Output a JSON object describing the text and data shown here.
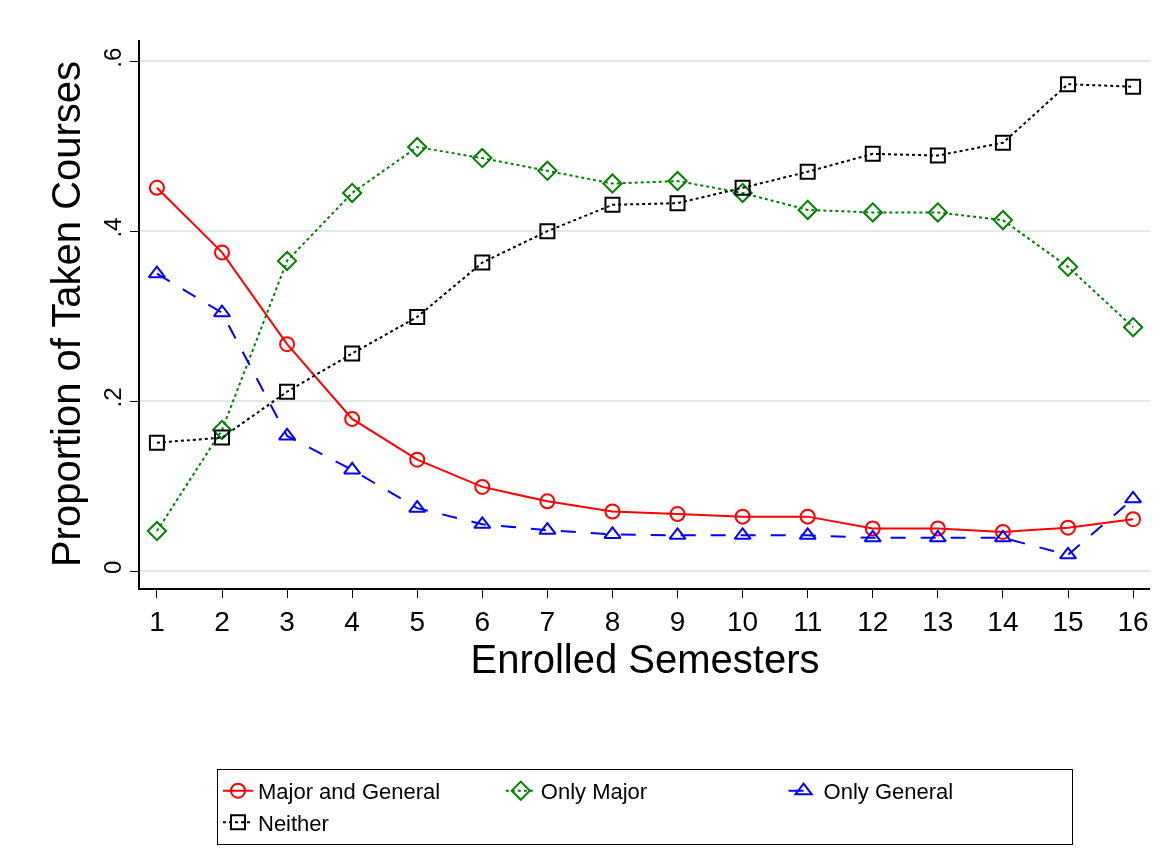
{
  "chart_data": {
    "type": "line",
    "xlabel": "Enrolled Semesters",
    "ylabel": "Proportion of Taken Courses",
    "x": [
      1,
      2,
      3,
      4,
      5,
      6,
      7,
      8,
      9,
      10,
      11,
      12,
      13,
      14,
      15,
      16
    ],
    "xlim": [
      0.74,
      16.26
    ],
    "xticks": [
      1,
      2,
      3,
      4,
      5,
      6,
      7,
      8,
      9,
      10,
      11,
      12,
      13,
      14,
      15,
      16
    ],
    "ylim": [
      -0.02,
      0.625
    ],
    "yticks": [
      {
        "value": 0,
        "label": "0"
      },
      {
        "value": 0.2,
        "label": ".2"
      },
      {
        "value": 0.4,
        "label": ".4"
      },
      {
        "value": 0.6,
        "label": ".6"
      }
    ],
    "grid": "y",
    "legend": "bottom",
    "series": [
      {
        "name": "Major and General",
        "color": "#ff0000",
        "marker": "circle",
        "line_style": "solid",
        "values": [
          0.451,
          0.375,
          0.267,
          0.179,
          0.131,
          0.099,
          0.082,
          0.07,
          0.067,
          0.064,
          0.064,
          0.05,
          0.05,
          0.046,
          0.051,
          0.061
        ]
      },
      {
        "name": "Only Major",
        "color": "#008000",
        "marker": "diamond",
        "line_style": "dotted",
        "values": [
          0.047,
          0.166,
          0.365,
          0.445,
          0.499,
          0.486,
          0.471,
          0.456,
          0.459,
          0.445,
          0.425,
          0.422,
          0.422,
          0.413,
          0.358,
          0.287
        ]
      },
      {
        "name": "Only General",
        "color": "#0000ff",
        "marker": "triangle",
        "line_style": "dashed",
        "values": [
          0.35,
          0.304,
          0.159,
          0.119,
          0.074,
          0.055,
          0.048,
          0.043,
          0.042,
          0.042,
          0.042,
          0.039,
          0.039,
          0.039,
          0.019,
          0.085
        ]
      },
      {
        "name": "Neither",
        "color": "#000000",
        "marker": "square",
        "line_style": "dotted",
        "values": [
          0.151,
          0.157,
          0.211,
          0.256,
          0.299,
          0.363,
          0.4,
          0.431,
          0.433,
          0.451,
          0.47,
          0.491,
          0.489,
          0.504,
          0.573,
          0.57
        ]
      }
    ]
  }
}
